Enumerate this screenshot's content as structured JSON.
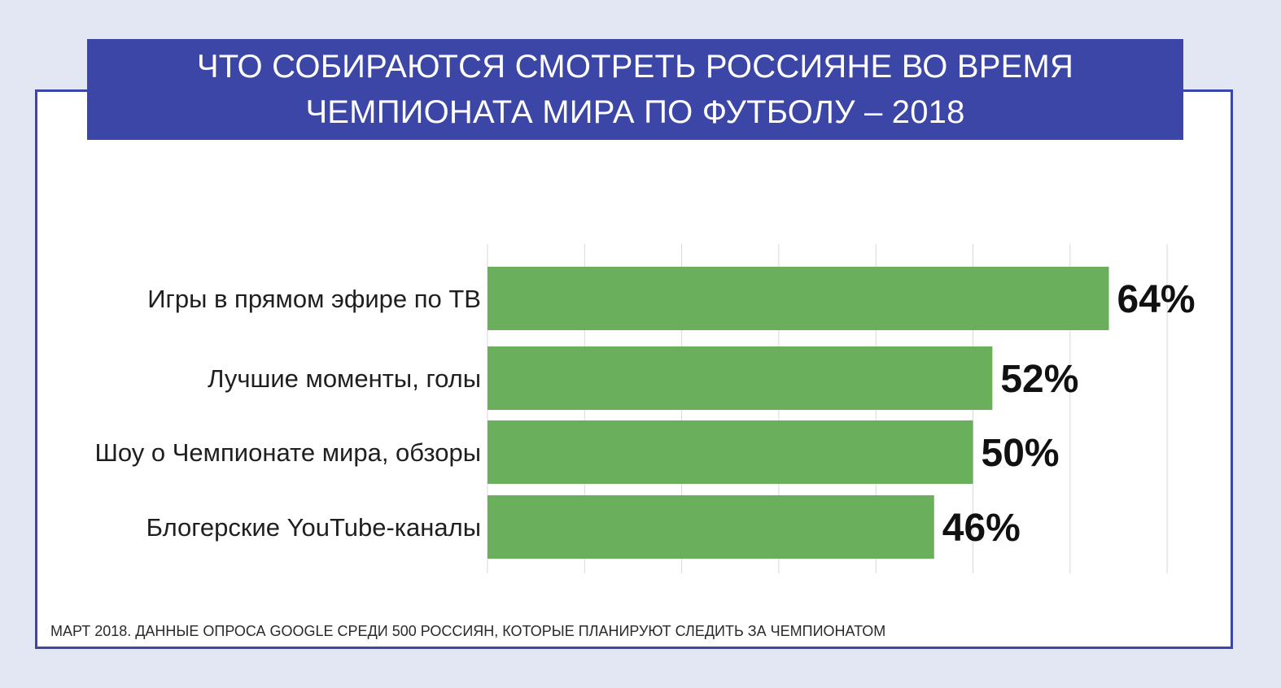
{
  "title": {
    "line1": "ЧТО СОБИРАЮТСЯ СМОТРЕТЬ РОССИЯНЕ ВО ВРЕМЯ",
    "line2": "ЧЕМПИОНАТА МИРА ПО ФУТБОЛУ – 2018"
  },
  "footnote": "МАРТ 2018. ДАННЫЕ ОПРОСА GOOGLE СРЕДИ 500 РОССИЯН, КОТОРЫЕ ПЛАНИРУЮТ СЛЕДИТЬ ЗА ЧЕМПИОНАТОМ",
  "colors": {
    "banner": "#3c46a7",
    "border": "#3b47a8",
    "bar": "#6aaf5c",
    "grid": "#d9d9d9",
    "background": "#e3e6f3"
  },
  "chart_data": {
    "type": "bar",
    "orientation": "horizontal",
    "title": "ЧТО СОБИРАЮТСЯ СМОТРЕТЬ РОССИЯНЕ ВО ВРЕМЯ ЧЕМПИОНАТА МИРА ПО ФУТБОЛУ – 2018",
    "categories": [
      "Игры в прямом эфире по ТВ",
      "Лучшие моменты, голы",
      "Шоу о Чемпионате мира, обзоры",
      "Блогерские YouTube-каналы"
    ],
    "values": [
      64,
      52,
      50,
      46
    ],
    "value_labels": [
      "64%",
      "52%",
      "50%",
      "46%"
    ],
    "unit": "%",
    "xlim": [
      0,
      70
    ],
    "grid": true,
    "xlabel": "",
    "ylabel": ""
  }
}
